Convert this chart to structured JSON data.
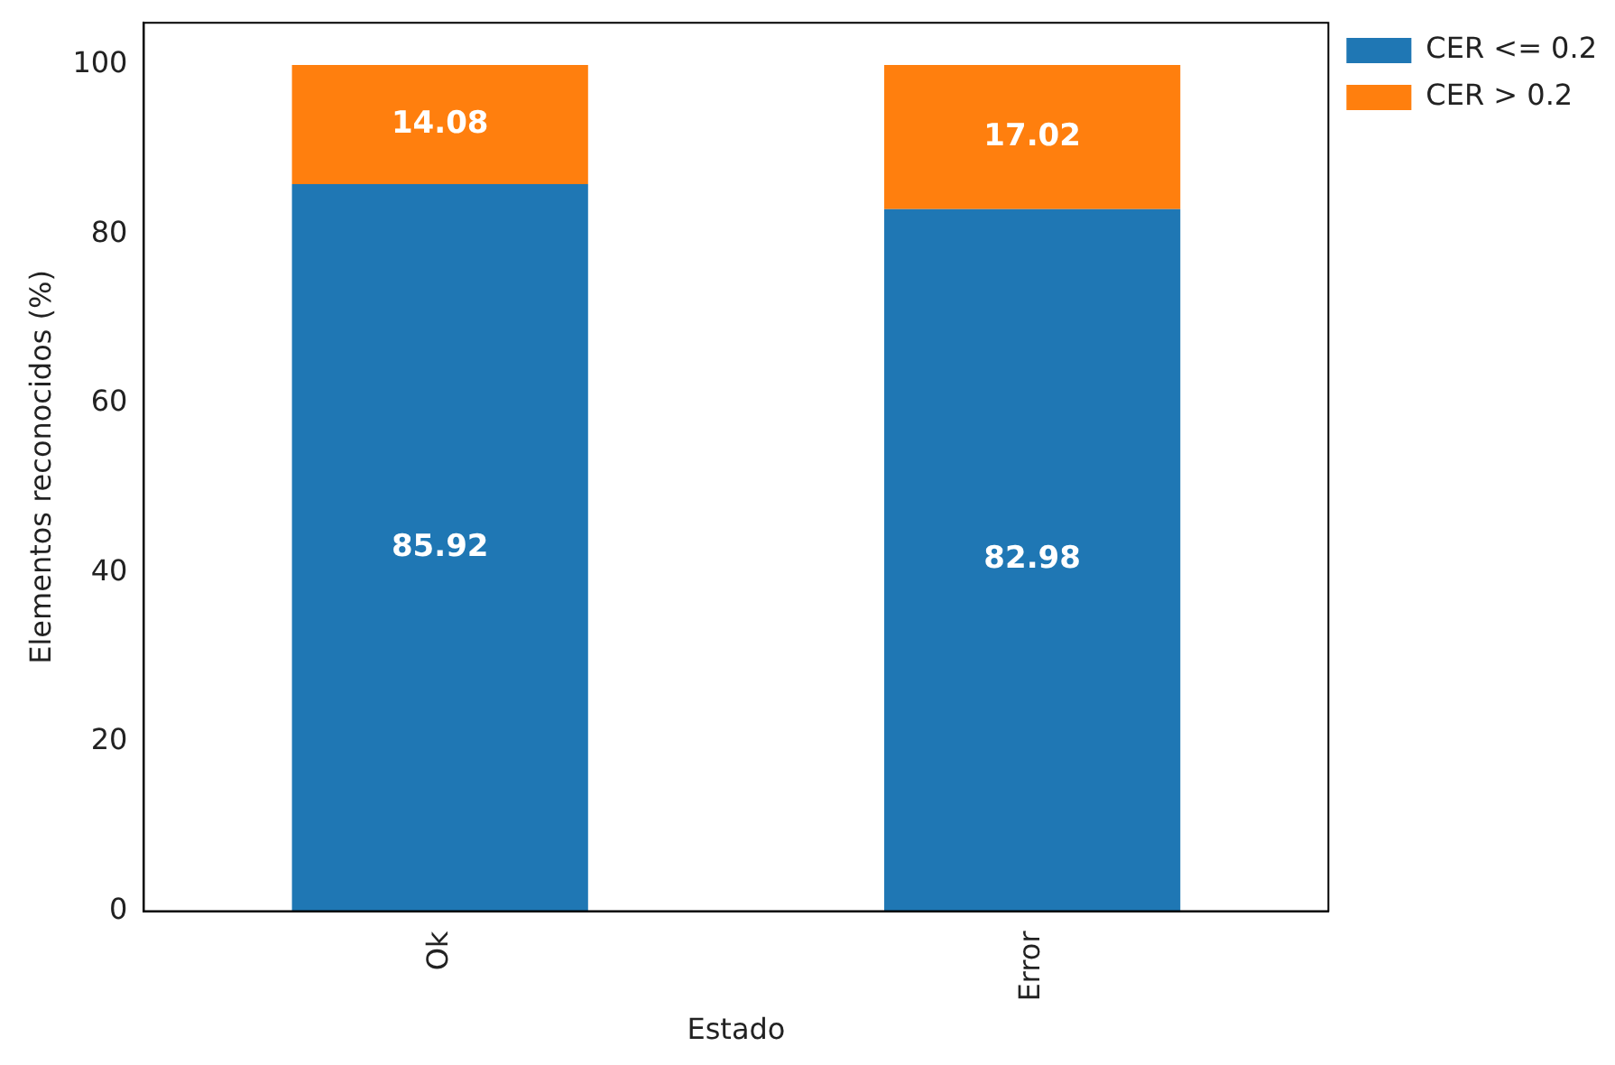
{
  "chart_data": {
    "type": "bar",
    "stacked": true,
    "xlabel": "Estado",
    "ylabel": "Elementos reconocidos (%)",
    "categories": [
      "Ok",
      "Error"
    ],
    "series": [
      {
        "name": "CER <= 0.2",
        "color": "#1f77b4",
        "values": [
          85.92,
          82.98
        ]
      },
      {
        "name": "CER > 0.2",
        "color": "#ff7f0e",
        "values": [
          14.08,
          17.02
        ]
      }
    ],
    "ylim": [
      0,
      105
    ],
    "yticks": [
      0,
      20,
      40,
      60,
      80,
      100
    ],
    "grid": false,
    "legend": "top right",
    "data_labels": true
  }
}
